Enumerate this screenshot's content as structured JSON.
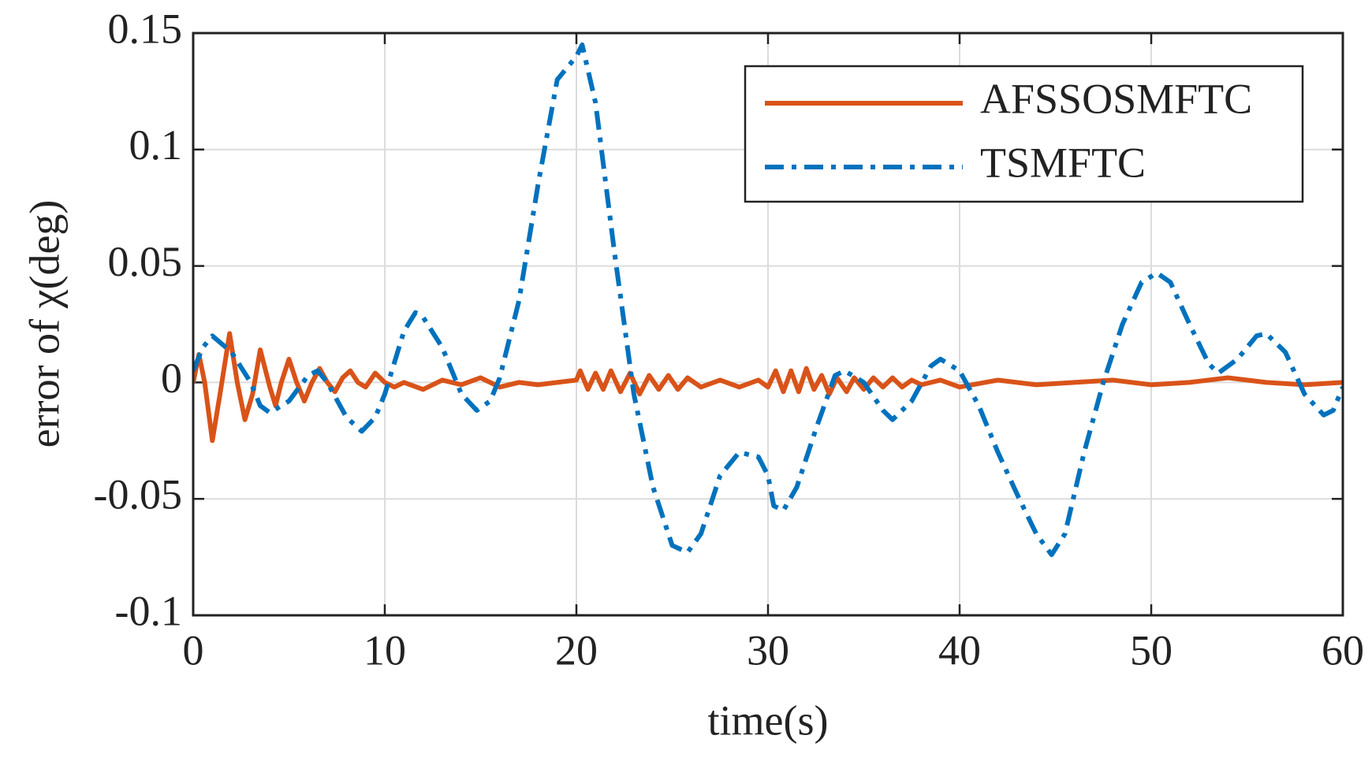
{
  "chart_data": {
    "type": "line",
    "xlabel": "time(s)",
    "ylabel": "error of χ(deg)",
    "xlim": [
      0,
      60
    ],
    "ylim": [
      -0.1,
      0.15
    ],
    "xticks": [
      0,
      10,
      20,
      30,
      40,
      50,
      60
    ],
    "yticks": [
      -0.1,
      -0.05,
      0,
      0.05,
      0.1,
      0.15
    ],
    "grid": true,
    "legend_position": "upper right",
    "series": [
      {
        "name": "AFSSOSMFTC",
        "color": "#d95319",
        "dash": "solid",
        "x": [
          0,
          0.3,
          0.6,
          1.0,
          1.4,
          1.9,
          2.3,
          2.7,
          3.1,
          3.5,
          4,
          4.3,
          4.6,
          5.0,
          5.4,
          5.8,
          6.2,
          6.6,
          7.0,
          7.4,
          7.8,
          8.2,
          8.6,
          9.0,
          9.5,
          10,
          10.5,
          11,
          12,
          13,
          14,
          15,
          16,
          17,
          18,
          19,
          20,
          20.2,
          20.6,
          21,
          21.4,
          21.8,
          22.3,
          22.8,
          23.3,
          23.8,
          24.3,
          24.8,
          25.3,
          25.8,
          26.5,
          27.5,
          28.5,
          29.5,
          30,
          30.4,
          30.8,
          31.2,
          31.6,
          32,
          32.4,
          32.8,
          33.2,
          33.6,
          34.1,
          34.5,
          35,
          35.5,
          36,
          36.5,
          37,
          37.5,
          38,
          39,
          40,
          42,
          44,
          46,
          48,
          50,
          52,
          54,
          56,
          58,
          60
        ],
        "values": [
          0.0,
          0.012,
          0.0,
          -0.025,
          -0.005,
          0.021,
          0.0,
          -0.016,
          -0.005,
          0.014,
          -0.002,
          -0.01,
          0.0,
          0.01,
          0.0,
          -0.008,
          0.0,
          0.006,
          0.0,
          -0.004,
          0.002,
          0.005,
          0.0,
          -0.002,
          0.004,
          0.0,
          -0.002,
          0.0,
          -0.003,
          0.001,
          -0.001,
          0.002,
          -0.002,
          0.0,
          -0.001,
          0.0,
          0.001,
          0.005,
          -0.003,
          0.004,
          -0.003,
          0.005,
          -0.004,
          0.004,
          -0.005,
          0.003,
          -0.003,
          0.003,
          -0.003,
          0.002,
          -0.002,
          0.001,
          -0.002,
          0.001,
          -0.002,
          0.005,
          -0.004,
          0.005,
          -0.004,
          0.006,
          -0.003,
          0.003,
          -0.005,
          0.002,
          -0.004,
          0.002,
          -0.003,
          0.002,
          -0.002,
          0.002,
          -0.002,
          0.001,
          -0.001,
          0.001,
          -0.002,
          0.001,
          -0.001,
          0.0,
          0.001,
          -0.001,
          0.0,
          0.002,
          0.0,
          -0.001,
          0.0
        ]
      },
      {
        "name": "TSMFTC",
        "color": "#0072bd",
        "dash": "dashdot",
        "x": [
          0,
          0.5,
          1,
          2,
          3,
          3.5,
          4,
          5,
          6,
          6.5,
          7,
          8,
          8.8,
          9.5,
          10,
          11,
          11.6,
          12,
          13,
          14,
          14.8,
          15.5,
          16,
          17,
          18,
          19,
          20,
          20.3,
          21,
          22,
          23,
          24,
          25,
          25.8,
          26.5,
          27.5,
          28.5,
          29.5,
          30,
          30.3,
          30.8,
          31.5,
          32.5,
          33.5,
          34,
          35,
          36,
          36.5,
          37.5,
          38.5,
          39,
          40,
          41,
          42,
          43,
          44,
          44.8,
          45.5,
          46.5,
          47.5,
          48.5,
          49.5,
          50.3,
          51,
          52,
          53,
          53.5,
          54.5,
          55.5,
          56,
          57,
          58,
          59,
          59.5,
          60
        ],
        "values": [
          0.005,
          0.015,
          0.02,
          0.013,
          0.0,
          -0.01,
          -0.013,
          -0.008,
          0.003,
          0.005,
          0.0,
          -0.015,
          -0.021,
          -0.015,
          -0.005,
          0.022,
          0.03,
          0.028,
          0.015,
          -0.005,
          -0.012,
          -0.008,
          0.002,
          0.035,
          0.085,
          0.13,
          0.14,
          0.145,
          0.12,
          0.055,
          -0.005,
          -0.045,
          -0.07,
          -0.073,
          -0.065,
          -0.04,
          -0.03,
          -0.032,
          -0.04,
          -0.053,
          -0.055,
          -0.045,
          -0.02,
          0.003,
          0.005,
          0.0,
          -0.012,
          -0.016,
          -0.008,
          0.007,
          0.01,
          0.005,
          -0.01,
          -0.03,
          -0.048,
          -0.065,
          -0.074,
          -0.065,
          -0.03,
          0.0,
          0.025,
          0.043,
          0.047,
          0.043,
          0.025,
          0.008,
          0.004,
          0.01,
          0.02,
          0.021,
          0.013,
          -0.005,
          -0.014,
          -0.012,
          -0.002
        ]
      }
    ]
  }
}
